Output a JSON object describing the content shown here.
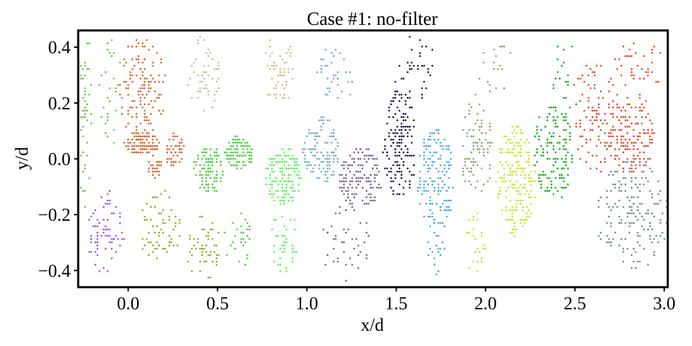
{
  "chart_data": {
    "type": "scatter",
    "title": "Case #1: no-filter",
    "xlabel": "x/d",
    "ylabel": "y/d",
    "xlim": [
      -0.28,
      3.02
    ],
    "ylim": [
      -0.46,
      0.46
    ],
    "xticks": [
      "0.0",
      "0.5",
      "1.0",
      "1.5",
      "2.0",
      "2.5",
      "3.0"
    ],
    "yticks": [
      "−0.4",
      "−0.2",
      "0.0",
      "0.2",
      "0.4"
    ],
    "xtick_values": [
      0.0,
      0.5,
      1.0,
      1.5,
      2.0,
      2.5,
      3.0
    ],
    "ytick_values": [
      -0.4,
      -0.2,
      0.0,
      0.2,
      0.4
    ],
    "grid": false,
    "legend": "none",
    "series": [
      {
        "color": "#65c43f",
        "clusters": [
          {
            "cx": -0.24,
            "cy": 0.25,
            "rx": 0.045,
            "ry": 0.2,
            "n": 40,
            "dense": false
          },
          {
            "cx": -0.1,
            "cy": 0.25,
            "rx": 0.06,
            "ry": 0.2,
            "n": 30,
            "dense": false
          },
          {
            "cx": -0.25,
            "cy": -0.05,
            "rx": 0.04,
            "ry": 0.15,
            "n": 14,
            "dense": false
          }
        ]
      },
      {
        "color": "#d2622a",
        "clusters": [
          {
            "cx": 0.08,
            "cy": 0.25,
            "rx": 0.13,
            "ry": 0.19,
            "n": 140,
            "dense": false
          },
          {
            "cx": 0.08,
            "cy": 0.055,
            "rx": 0.1,
            "ry": 0.04,
            "n": 110,
            "dense": true
          },
          {
            "cx": 0.26,
            "cy": 0.03,
            "rx": 0.05,
            "ry": 0.07,
            "n": 45,
            "dense": true
          },
          {
            "cx": 0.15,
            "cy": -0.03,
            "rx": 0.04,
            "ry": 0.04,
            "n": 25,
            "dense": true
          }
        ]
      },
      {
        "color": "#9b4ef0",
        "clusters": [
          {
            "cx": -0.13,
            "cy": -0.26,
            "rx": 0.11,
            "ry": 0.15,
            "n": 75,
            "dense": false
          }
        ]
      },
      {
        "color": "#99a324",
        "clusters": [
          {
            "cx": 0.18,
            "cy": -0.25,
            "rx": 0.12,
            "ry": 0.14,
            "n": 70,
            "dense": false
          },
          {
            "cx": 0.42,
            "cy": -0.32,
            "rx": 0.1,
            "ry": 0.12,
            "n": 55,
            "dense": false
          }
        ]
      },
      {
        "color": "#cfb789",
        "clusters": [
          {
            "cx": 0.42,
            "cy": 0.3,
            "rx": 0.1,
            "ry": 0.14,
            "n": 55,
            "dense": false
          },
          {
            "cx": 0.85,
            "cy": 0.32,
            "rx": 0.1,
            "ry": 0.13,
            "n": 55,
            "dense": false
          }
        ]
      },
      {
        "color": "#44d135",
        "clusters": [
          {
            "cx": 0.45,
            "cy": -0.04,
            "rx": 0.085,
            "ry": 0.08,
            "n": 120,
            "dense": true
          },
          {
            "cx": 0.62,
            "cy": 0.02,
            "rx": 0.08,
            "ry": 0.06,
            "n": 110,
            "dense": true
          },
          {
            "cx": 0.62,
            "cy": -0.3,
            "rx": 0.08,
            "ry": 0.12,
            "n": 30,
            "dense": false
          }
        ]
      },
      {
        "color": "#5ef058",
        "clusters": [
          {
            "cx": 0.87,
            "cy": -0.06,
            "rx": 0.1,
            "ry": 0.1,
            "n": 150,
            "dense": true
          },
          {
            "cx": 0.87,
            "cy": -0.3,
            "rx": 0.08,
            "ry": 0.12,
            "n": 40,
            "dense": false
          }
        ]
      },
      {
        "color": "#76a7c9",
        "clusters": [
          {
            "cx": 1.08,
            "cy": 0.03,
            "rx": 0.1,
            "ry": 0.12,
            "n": 130,
            "dense": true
          },
          {
            "cx": 1.15,
            "cy": 0.3,
            "rx": 0.12,
            "ry": 0.1,
            "n": 40,
            "dense": false
          }
        ]
      },
      {
        "color": "#7a5f8c",
        "clusters": [
          {
            "cx": 1.3,
            "cy": -0.07,
            "rx": 0.12,
            "ry": 0.11,
            "n": 150,
            "dense": true
          },
          {
            "cx": 1.22,
            "cy": -0.3,
            "rx": 0.14,
            "ry": 0.14,
            "n": 45,
            "dense": false
          }
        ]
      },
      {
        "color": "#1b1448",
        "clusters": [
          {
            "cx": 1.52,
            "cy": 0.05,
            "rx": 0.09,
            "ry": 0.2,
            "n": 170,
            "dense": false
          },
          {
            "cx": 1.6,
            "cy": 0.33,
            "rx": 0.12,
            "ry": 0.12,
            "n": 35,
            "dense": false
          }
        ]
      },
      {
        "color": "#44a4e8",
        "clusters": [
          {
            "cx": 1.72,
            "cy": -0.08,
            "rx": 0.1,
            "ry": 0.19,
            "n": 160,
            "dense": true
          },
          {
            "cx": 1.72,
            "cy": -0.35,
            "rx": 0.06,
            "ry": 0.08,
            "n": 20,
            "dense": false
          }
        ]
      },
      {
        "color": "#7fa76b",
        "clusters": [
          {
            "cx": 1.95,
            "cy": 0.05,
            "rx": 0.1,
            "ry": 0.18,
            "n": 100,
            "dense": false
          },
          {
            "cx": 2.05,
            "cy": 0.33,
            "rx": 0.1,
            "ry": 0.1,
            "n": 20,
            "dense": false
          }
        ]
      },
      {
        "color": "#c9e225",
        "clusters": [
          {
            "cx": 2.17,
            "cy": -0.08,
            "rx": 0.11,
            "ry": 0.2,
            "n": 200,
            "dense": true
          },
          {
            "cx": 1.95,
            "cy": -0.3,
            "rx": 0.06,
            "ry": 0.12,
            "n": 25,
            "dense": false
          }
        ]
      },
      {
        "color": "#16a81b",
        "clusters": [
          {
            "cx": 2.38,
            "cy": 0.03,
            "rx": 0.11,
            "ry": 0.18,
            "n": 150,
            "dense": true
          },
          {
            "cx": 2.45,
            "cy": 0.3,
            "rx": 0.08,
            "ry": 0.13,
            "n": 20,
            "dense": false
          }
        ]
      },
      {
        "color": "#e0452b",
        "clusters": [
          {
            "cx": 2.62,
            "cy": 0.15,
            "rx": 0.12,
            "ry": 0.23,
            "n": 110,
            "dense": false
          },
          {
            "cx": 2.82,
            "cy": 0.08,
            "rx": 0.13,
            "ry": 0.13,
            "n": 160,
            "dense": true
          },
          {
            "cx": 2.85,
            "cy": 0.32,
            "rx": 0.15,
            "ry": 0.12,
            "n": 40,
            "dense": false
          }
        ]
      },
      {
        "color": "#6b8f80",
        "clusters": [
          {
            "cx": 2.82,
            "cy": -0.2,
            "rx": 0.2,
            "ry": 0.2,
            "n": 180,
            "dense": false
          }
        ]
      }
    ]
  }
}
